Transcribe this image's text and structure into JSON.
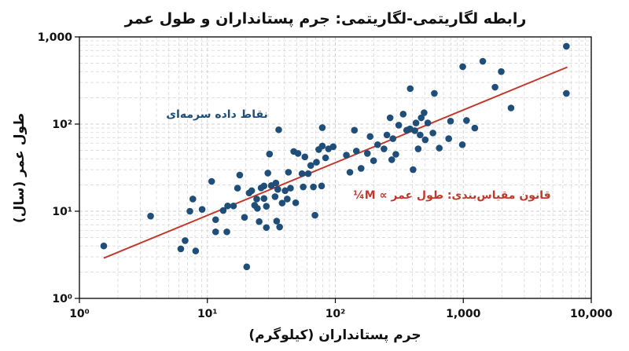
{
  "chart_data": {
    "type": "scatter",
    "title": "رابطه لگاریتمی-لگاریتمی: جرم پستانداران و طول عمر",
    "xlabel": "جرم پستانداران (کیلوگرم)",
    "ylabel": "طول عمر (سال)",
    "x_scale": "log",
    "y_scale": "log",
    "xlim": [
      1,
      10000
    ],
    "ylim": [
      1,
      1000
    ],
    "x_ticks": [
      {
        "value": 1,
        "label": "10⁰"
      },
      {
        "value": 10,
        "label": "10¹"
      },
      {
        "value": 100,
        "label": "10²"
      },
      {
        "value": 1000,
        "label": "1,000"
      },
      {
        "value": 10000,
        "label": "10,000"
      }
    ],
    "y_ticks": [
      {
        "value": 1,
        "label": "10⁰"
      },
      {
        "value": 10,
        "label": "10¹"
      },
      {
        "value": 100,
        "label": "10²"
      },
      {
        "value": 1000,
        "label": "1,000"
      }
    ],
    "grid": true,
    "colors": {
      "points": "#1f4e79",
      "fit": "#c0392b",
      "grid": "#cccccc"
    },
    "annotations": {
      "points_label": "نقاط داده سرمه‌ای",
      "fit_label": "قانون مقیاس‌بندی: طول عمر ∝ M¼"
    },
    "fit_line": {
      "x": [
        1.55,
        6500
      ],
      "y": [
        2.9,
        450
      ]
    },
    "points": [
      {
        "x": 1.55,
        "y": 4.0
      },
      {
        "x": 3.6,
        "y": 8.8
      },
      {
        "x": 6.2,
        "y": 3.7
      },
      {
        "x": 6.7,
        "y": 4.6
      },
      {
        "x": 7.3,
        "y": 10.0
      },
      {
        "x": 7.7,
        "y": 13.8
      },
      {
        "x": 8.1,
        "y": 3.5
      },
      {
        "x": 9.1,
        "y": 10.5
      },
      {
        "x": 10.8,
        "y": 22.0
      },
      {
        "x": 11.6,
        "y": 5.8
      },
      {
        "x": 11.6,
        "y": 8.0
      },
      {
        "x": 13.3,
        "y": 10.2
      },
      {
        "x": 14.2,
        "y": 5.8
      },
      {
        "x": 14.4,
        "y": 11.5
      },
      {
        "x": 16.0,
        "y": 11.5
      },
      {
        "x": 17.2,
        "y": 18.4
      },
      {
        "x": 17.9,
        "y": 26.0
      },
      {
        "x": 19.5,
        "y": 8.5
      },
      {
        "x": 20.3,
        "y": 2.3
      },
      {
        "x": 21.2,
        "y": 16.2
      },
      {
        "x": 22.2,
        "y": 17.2
      },
      {
        "x": 23.4,
        "y": 11.7
      },
      {
        "x": 24.3,
        "y": 13.8
      },
      {
        "x": 24.6,
        "y": 10.8
      },
      {
        "x": 25.4,
        "y": 7.6
      },
      {
        "x": 26.3,
        "y": 18.5
      },
      {
        "x": 27.7,
        "y": 19.5
      },
      {
        "x": 27.7,
        "y": 14.0
      },
      {
        "x": 28.9,
        "y": 11.4
      },
      {
        "x": 28.9,
        "y": 6.5
      },
      {
        "x": 29.7,
        "y": 27.4
      },
      {
        "x": 30.6,
        "y": 45.3
      },
      {
        "x": 31.6,
        "y": 19.7
      },
      {
        "x": 33.8,
        "y": 14.7
      },
      {
        "x": 34.3,
        "y": 21.1
      },
      {
        "x": 34.8,
        "y": 7.7
      },
      {
        "x": 35.5,
        "y": 17.8
      },
      {
        "x": 36.1,
        "y": 86.0
      },
      {
        "x": 36.7,
        "y": 6.6
      },
      {
        "x": 38.4,
        "y": 12.4
      },
      {
        "x": 40.5,
        "y": 17.2
      },
      {
        "x": 42.1,
        "y": 13.8
      },
      {
        "x": 43.0,
        "y": 28.0
      },
      {
        "x": 44.6,
        "y": 18.4
      },
      {
        "x": 47.3,
        "y": 48.5
      },
      {
        "x": 49.0,
        "y": 12.5
      },
      {
        "x": 51.1,
        "y": 46.0
      },
      {
        "x": 54.9,
        "y": 27.0
      },
      {
        "x": 56.1,
        "y": 19.0
      },
      {
        "x": 57.8,
        "y": 42.0
      },
      {
        "x": 61.4,
        "y": 27.0
      },
      {
        "x": 64.3,
        "y": 33.5
      },
      {
        "x": 67.4,
        "y": 19.0
      },
      {
        "x": 69.3,
        "y": 9.0
      },
      {
        "x": 71.2,
        "y": 36.5
      },
      {
        "x": 74.2,
        "y": 51.0
      },
      {
        "x": 78.1,
        "y": 19.5
      },
      {
        "x": 79.1,
        "y": 91.0
      },
      {
        "x": 79.1,
        "y": 56.0
      },
      {
        "x": 83.9,
        "y": 41.0
      },
      {
        "x": 88.4,
        "y": 52.0
      },
      {
        "x": 96.2,
        "y": 55.0
      },
      {
        "x": 122.0,
        "y": 44.0
      },
      {
        "x": 130.0,
        "y": 28.0
      },
      {
        "x": 141.0,
        "y": 85.0
      },
      {
        "x": 146.0,
        "y": 49.0
      },
      {
        "x": 159.0,
        "y": 31.0
      },
      {
        "x": 178.0,
        "y": 46.0
      },
      {
        "x": 187.0,
        "y": 72.0
      },
      {
        "x": 199.0,
        "y": 38.0
      },
      {
        "x": 214.0,
        "y": 58.0
      },
      {
        "x": 240.0,
        "y": 52.0
      },
      {
        "x": 253.0,
        "y": 75.0
      },
      {
        "x": 268.0,
        "y": 118.0
      },
      {
        "x": 276.0,
        "y": 39.0
      },
      {
        "x": 282.0,
        "y": 68.0
      },
      {
        "x": 297.0,
        "y": 45.0
      },
      {
        "x": 313.0,
        "y": 97.0
      },
      {
        "x": 339.0,
        "y": 130.0
      },
      {
        "x": 361.0,
        "y": 85.0
      },
      {
        "x": 383.0,
        "y": 88.0
      },
      {
        "x": 385.0,
        "y": 255.0
      },
      {
        "x": 405.0,
        "y": 30.0
      },
      {
        "x": 418.0,
        "y": 84.0
      },
      {
        "x": 427.0,
        "y": 103.0
      },
      {
        "x": 444.0,
        "y": 52.0
      },
      {
        "x": 460.0,
        "y": 75.0
      },
      {
        "x": 469.0,
        "y": 118.0
      },
      {
        "x": 494.0,
        "y": 135.0
      },
      {
        "x": 504.0,
        "y": 66.0
      },
      {
        "x": 528.0,
        "y": 103.0
      },
      {
        "x": 579.0,
        "y": 79.0
      },
      {
        "x": 594.0,
        "y": 225.0
      },
      {
        "x": 649.0,
        "y": 53.0
      },
      {
        "x": 769.0,
        "y": 68.0
      },
      {
        "x": 795.0,
        "y": 108.0
      },
      {
        "x": 983.0,
        "y": 58.0
      },
      {
        "x": 990.0,
        "y": 455.0
      },
      {
        "x": 1060.0,
        "y": 110.0
      },
      {
        "x": 1230.0,
        "y": 90.0
      },
      {
        "x": 1420.0,
        "y": 525.0
      },
      {
        "x": 1770.0,
        "y": 265.0
      },
      {
        "x": 1980.0,
        "y": 400.0
      },
      {
        "x": 2360.0,
        "y": 153.0
      },
      {
        "x": 6390.0,
        "y": 780.0
      },
      {
        "x": 6390.0,
        "y": 225.0
      }
    ]
  }
}
